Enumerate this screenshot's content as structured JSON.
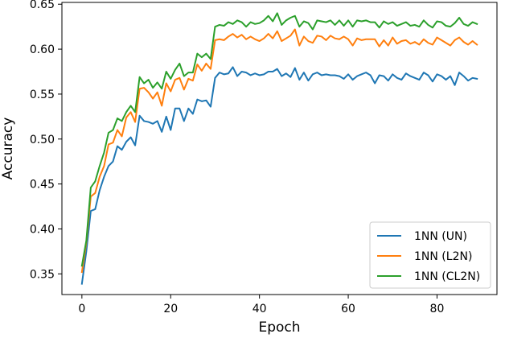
{
  "chart_data": {
    "type": "line",
    "title": "",
    "xlabel": "Epoch",
    "ylabel": "Accuracy",
    "xlim": [
      -4.5,
      93.5
    ],
    "ylim": [
      0.327,
      0.652
    ],
    "xticks": [
      0,
      20,
      40,
      60,
      80
    ],
    "yticks": [
      0.35,
      0.4,
      0.45,
      0.5,
      0.55,
      0.6,
      0.65
    ],
    "grid": false,
    "legend_position": "lower-right",
    "x": [
      0,
      1,
      2,
      3,
      4,
      5,
      6,
      7,
      8,
      9,
      10,
      11,
      12,
      13,
      14,
      15,
      16,
      17,
      18,
      19,
      20,
      21,
      22,
      23,
      24,
      25,
      26,
      27,
      28,
      29,
      30,
      31,
      32,
      33,
      34,
      35,
      36,
      37,
      38,
      39,
      40,
      41,
      42,
      43,
      44,
      45,
      46,
      47,
      48,
      49,
      50,
      51,
      52,
      53,
      54,
      55,
      56,
      57,
      58,
      59,
      60,
      61,
      62,
      63,
      64,
      65,
      66,
      67,
      68,
      69,
      70,
      71,
      72,
      73,
      74,
      75,
      76,
      77,
      78,
      79,
      80,
      81,
      82,
      83,
      84,
      85,
      86,
      87,
      88,
      89
    ],
    "series": [
      {
        "name": "1NN (UN)",
        "color": "#1f77b4",
        "values": [
          0.339,
          0.375,
          0.42,
          0.422,
          0.443,
          0.458,
          0.47,
          0.475,
          0.492,
          0.488,
          0.497,
          0.502,
          0.493,
          0.526,
          0.52,
          0.519,
          0.517,
          0.52,
          0.508,
          0.525,
          0.51,
          0.534,
          0.534,
          0.52,
          0.534,
          0.528,
          0.544,
          0.542,
          0.543,
          0.536,
          0.568,
          0.574,
          0.572,
          0.573,
          0.58,
          0.57,
          0.575,
          0.574,
          0.571,
          0.573,
          0.571,
          0.572,
          0.575,
          0.575,
          0.578,
          0.57,
          0.573,
          0.569,
          0.579,
          0.566,
          0.574,
          0.565,
          0.572,
          0.574,
          0.571,
          0.572,
          0.571,
          0.571,
          0.57,
          0.567,
          0.572,
          0.566,
          0.57,
          0.572,
          0.574,
          0.571,
          0.562,
          0.571,
          0.57,
          0.565,
          0.572,
          0.568,
          0.566,
          0.573,
          0.57,
          0.568,
          0.566,
          0.574,
          0.571,
          0.564,
          0.572,
          0.57,
          0.566,
          0.57,
          0.56,
          0.574,
          0.57,
          0.565,
          0.568,
          0.567
        ]
      },
      {
        "name": "1NN (L2N)",
        "color": "#ff7f0e",
        "values": [
          0.352,
          0.385,
          0.436,
          0.44,
          0.458,
          0.47,
          0.494,
          0.496,
          0.51,
          0.503,
          0.524,
          0.53,
          0.519,
          0.556,
          0.557,
          0.552,
          0.545,
          0.552,
          0.537,
          0.562,
          0.553,
          0.566,
          0.568,
          0.555,
          0.567,
          0.565,
          0.583,
          0.576,
          0.584,
          0.578,
          0.61,
          0.611,
          0.61,
          0.614,
          0.617,
          0.613,
          0.616,
          0.611,
          0.614,
          0.611,
          0.609,
          0.612,
          0.617,
          0.612,
          0.62,
          0.609,
          0.612,
          0.615,
          0.622,
          0.604,
          0.614,
          0.609,
          0.607,
          0.615,
          0.614,
          0.61,
          0.615,
          0.612,
          0.611,
          0.614,
          0.611,
          0.604,
          0.612,
          0.61,
          0.611,
          0.611,
          0.611,
          0.603,
          0.61,
          0.604,
          0.613,
          0.606,
          0.609,
          0.61,
          0.606,
          0.608,
          0.605,
          0.611,
          0.607,
          0.605,
          0.613,
          0.61,
          0.607,
          0.604,
          0.61,
          0.613,
          0.608,
          0.605,
          0.609,
          0.605
        ]
      },
      {
        "name": "1NN (CL2N)",
        "color": "#2ca02c",
        "values": [
          0.359,
          0.387,
          0.446,
          0.453,
          0.47,
          0.485,
          0.507,
          0.51,
          0.523,
          0.52,
          0.53,
          0.537,
          0.53,
          0.569,
          0.562,
          0.566,
          0.557,
          0.563,
          0.556,
          0.575,
          0.567,
          0.577,
          0.584,
          0.57,
          0.574,
          0.574,
          0.595,
          0.591,
          0.595,
          0.589,
          0.625,
          0.627,
          0.626,
          0.63,
          0.628,
          0.632,
          0.63,
          0.625,
          0.63,
          0.628,
          0.629,
          0.632,
          0.637,
          0.631,
          0.64,
          0.627,
          0.632,
          0.635,
          0.637,
          0.625,
          0.631,
          0.629,
          0.622,
          0.632,
          0.631,
          0.63,
          0.632,
          0.627,
          0.632,
          0.626,
          0.632,
          0.625,
          0.632,
          0.631,
          0.632,
          0.63,
          0.63,
          0.624,
          0.631,
          0.628,
          0.63,
          0.626,
          0.628,
          0.63,
          0.626,
          0.627,
          0.625,
          0.632,
          0.627,
          0.624,
          0.631,
          0.63,
          0.626,
          0.625,
          0.629,
          0.635,
          0.628,
          0.626,
          0.63,
          0.628
        ]
      }
    ]
  }
}
